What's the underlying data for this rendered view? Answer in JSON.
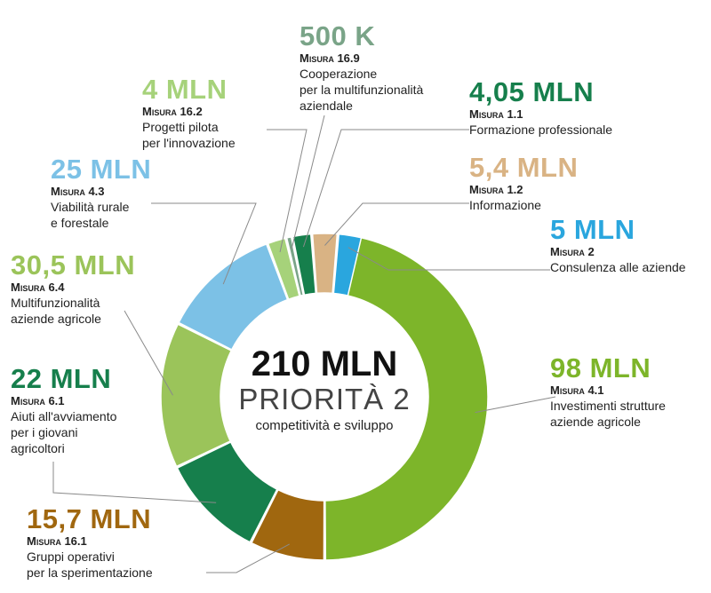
{
  "center": {
    "total": "210 MLN",
    "priority": "PRIORITÀ 2",
    "subtitle": "competitività e sviluppo"
  },
  "chart_data": {
    "type": "pie",
    "donut": true,
    "total_label": "210 MLN",
    "slices": [
      {
        "id": "m41",
        "amount": "98 MLN",
        "value": 98,
        "measure": "Misura 4.1",
        "description": [
          "Investimenti strutture",
          "aziende agricole"
        ],
        "color": "#7db52a"
      },
      {
        "id": "m161",
        "amount": "15,7 MLN",
        "value": 15.7,
        "measure": "Misura 16.1",
        "description": [
          "Gruppi operativi",
          "per la sperimentazione"
        ],
        "color": "#a0670f"
      },
      {
        "id": "m61",
        "amount": "22 MLN",
        "value": 22,
        "measure": "Misura 6.1",
        "description": [
          "Aiuti all'avviamento",
          "per i giovani",
          "agricoltori"
        ],
        "color": "#167f4c"
      },
      {
        "id": "m64",
        "amount": "30,5 MLN",
        "value": 30.5,
        "measure": "Misura 6.4",
        "description": [
          "Multifunzionalità",
          "aziende agricole"
        ],
        "color": "#9bc45a"
      },
      {
        "id": "m43",
        "amount": "25 MLN",
        "value": 25,
        "measure": "Misura 4.3",
        "description": [
          "Viabilità rurale",
          "e forestale"
        ],
        "color": "#7cc1e6"
      },
      {
        "id": "m162",
        "amount": "4 MLN",
        "value": 4,
        "measure": "Misura 16.2",
        "description": [
          "Progetti pilota",
          "per l'innovazione"
        ],
        "color": "#a6d27a"
      },
      {
        "id": "m169",
        "amount": "500 K",
        "value": 0.5,
        "measure": "Misura 16.9",
        "description": [
          "Cooperazione",
          "per la multifunzionalità",
          "aziendale"
        ],
        "color": "#7aa488"
      },
      {
        "id": "m11",
        "amount": "4,05 MLN",
        "value": 4.05,
        "measure": "Misura 1.1",
        "description": [
          "Formazione professionale"
        ],
        "color": "#167f4c"
      },
      {
        "id": "m12",
        "amount": "5,4 MLN",
        "value": 5.4,
        "measure": "Misura 1.2",
        "description": [
          "Informazione"
        ],
        "color": "#d9b384"
      },
      {
        "id": "m2",
        "amount": "5 MLN",
        "value": 5,
        "measure": "Misura 2",
        "description": [
          "Consulenza alle aziende"
        ],
        "color": "#2aa6de"
      }
    ]
  }
}
